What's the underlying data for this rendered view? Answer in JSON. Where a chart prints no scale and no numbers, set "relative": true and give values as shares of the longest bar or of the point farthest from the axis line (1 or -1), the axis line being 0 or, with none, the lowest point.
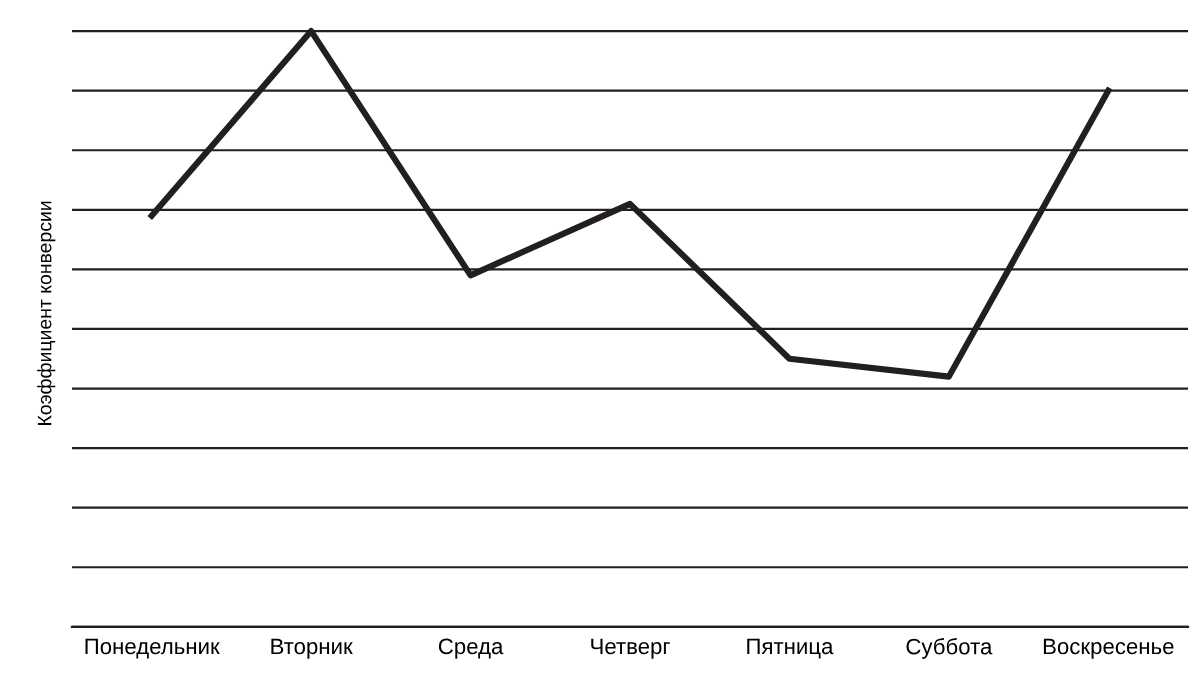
{
  "chart_data": {
    "type": "line",
    "relative": true,
    "ylabel": "Коэффициент конверсии",
    "categories": [
      "Понедельник",
      "Вторник",
      "Среда",
      "Четверг",
      "Пятница",
      "Суббота",
      "Воскресенье"
    ],
    "series": [
      {
        "color": "#231f20",
        "values": [
          0.69,
          1,
          0.59,
          0.71,
          0.45,
          0.42,
          0.9
        ]
      }
    ],
    "grid": "y",
    "marker": "none",
    "line_style": "solid",
    "legend": false
  }
}
